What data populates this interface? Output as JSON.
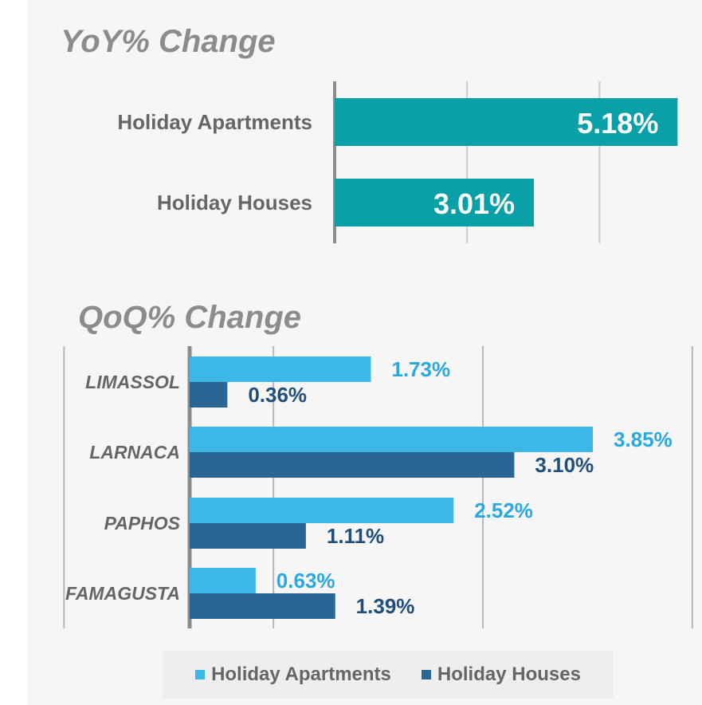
{
  "charts": {
    "yoy": {
      "title": "YoY% Change"
    },
    "qoq": {
      "title": "QoQ% Change"
    }
  },
  "colors": {
    "yoy_bar": "#0aa0a8",
    "apartments": "#3db7e6",
    "houses": "#2a6694",
    "apartments_label": "#2aa9e0",
    "houses_label": "#1f4f7a"
  },
  "chart_data": [
    {
      "type": "bar",
      "orientation": "horizontal",
      "title": "YoY% Change",
      "categories": [
        "Holiday Apartments",
        "Holiday Houses"
      ],
      "values": [
        5.18,
        3.01
      ],
      "labels": [
        "5.18%",
        "3.01%"
      ],
      "xlim": [
        0,
        5.2
      ],
      "grid": true
    },
    {
      "type": "bar",
      "orientation": "horizontal",
      "title": "QoQ% Change",
      "categories": [
        "LIMASSOL",
        "LARNACA",
        "PAPHOS",
        "FAMAGUSTA"
      ],
      "series": [
        {
          "name": "Holiday Apartments",
          "values": [
            1.73,
            3.85,
            2.52,
            0.63
          ],
          "labels": [
            "1.73%",
            "3.85%",
            "2.52%",
            "0.63%"
          ]
        },
        {
          "name": "Holiday Houses",
          "values": [
            0.36,
            3.1,
            1.11,
            1.39
          ],
          "labels": [
            "0.36%",
            "3.10%",
            "1.11%",
            "1.39%"
          ]
        }
      ],
      "xlim": [
        -1.2,
        4.8
      ],
      "grid": true,
      "legend": "bottom"
    }
  ]
}
